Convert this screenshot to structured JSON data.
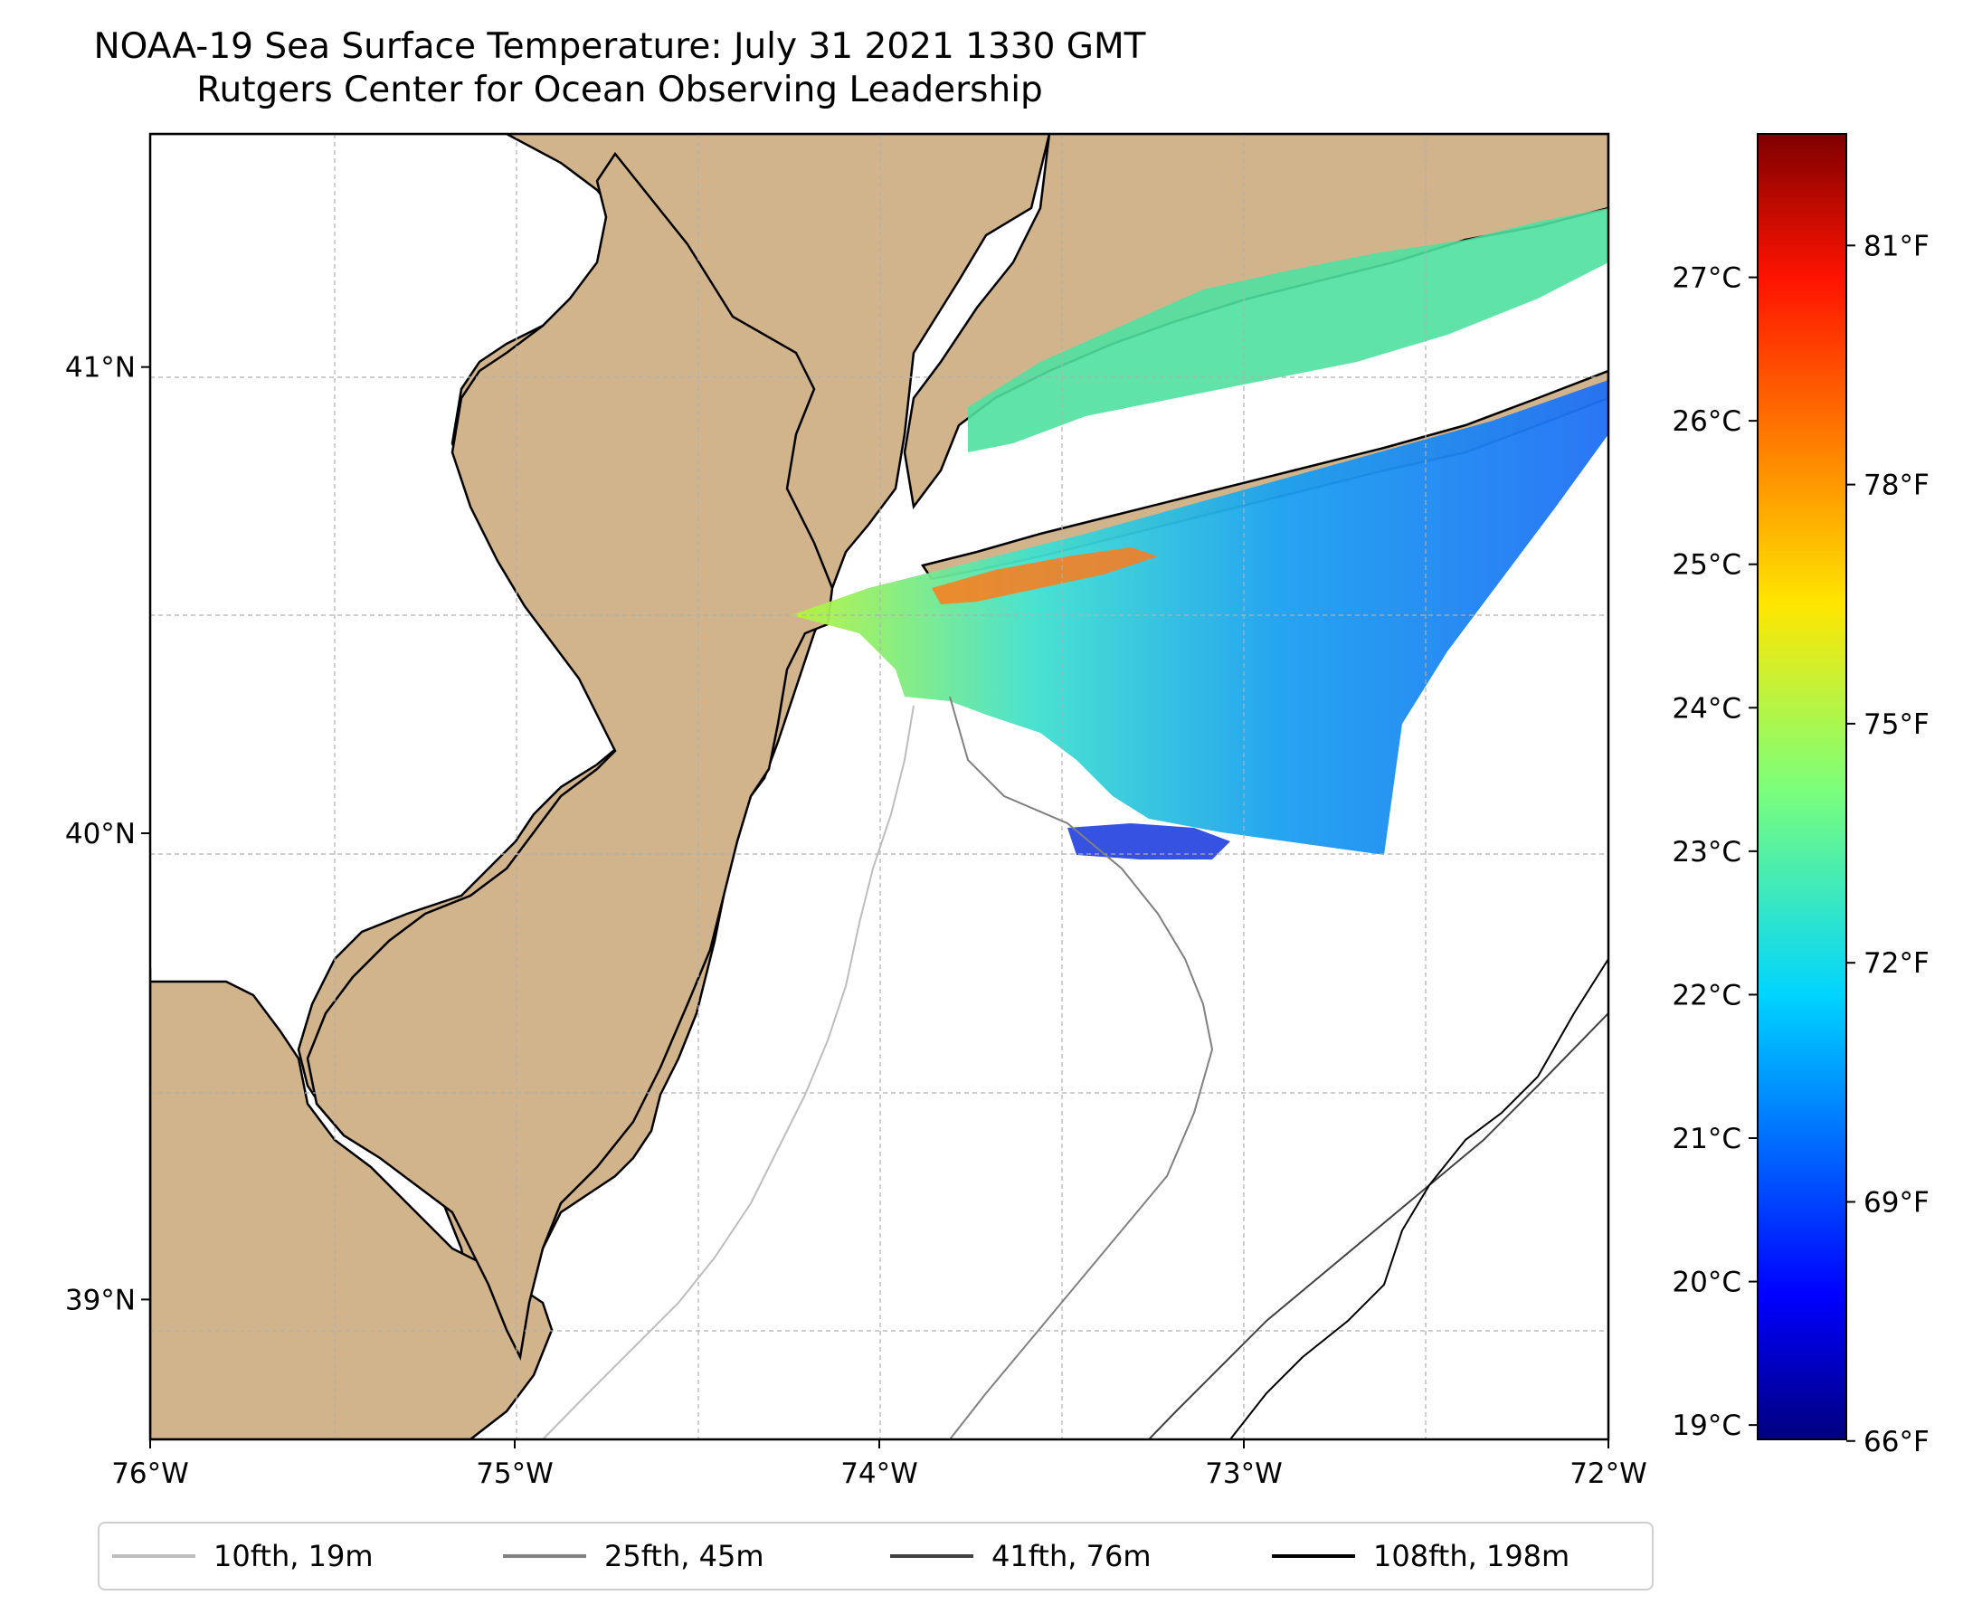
{
  "title": {
    "line1": "NOAA-19 Sea Surface Temperature: July 31 2021 1330 GMT",
    "line2": "Rutgers Center for Ocean Observing Leadership"
  },
  "map": {
    "lon_range": [
      -76,
      -72
    ],
    "lat_range": [
      38.7,
      41.5
    ],
    "lon_ticks": [
      {
        "value": -76,
        "label": "76°W"
      },
      {
        "value": -75,
        "label": "75°W"
      },
      {
        "value": -74,
        "label": "74°W"
      },
      {
        "value": -73,
        "label": "73°W"
      },
      {
        "value": -72,
        "label": "72°W"
      }
    ],
    "lat_ticks": [
      {
        "value": 41,
        "label": "41°N"
      },
      {
        "value": 40,
        "label": "40°N"
      },
      {
        "value": 39,
        "label": "39°N"
      }
    ],
    "gridlines": true,
    "land_color": "#d2b48c",
    "ocean_color": "#ffffff"
  },
  "colorbar": {
    "colormap": "jet",
    "celsius_range": [
      18.9,
      28.0
    ],
    "celsius_ticks": [
      "19°C",
      "20°C",
      "21°C",
      "22°C",
      "23°C",
      "24°C",
      "25°C",
      "26°C",
      "27°C"
    ],
    "fahrenheit_ticks": [
      "66°F",
      "69°F",
      "72°F",
      "75°F",
      "78°F",
      "81°F"
    ]
  },
  "legend": {
    "placement": "bottom",
    "items": [
      {
        "label": "10fth, 19m",
        "color": "#bdbdbd"
      },
      {
        "label": "25fth, 45m",
        "color": "#808080"
      },
      {
        "label": "41fth, 76m",
        "color": "#404040"
      },
      {
        "label": "108fth, 198m",
        "color": "#000000"
      }
    ]
  }
}
